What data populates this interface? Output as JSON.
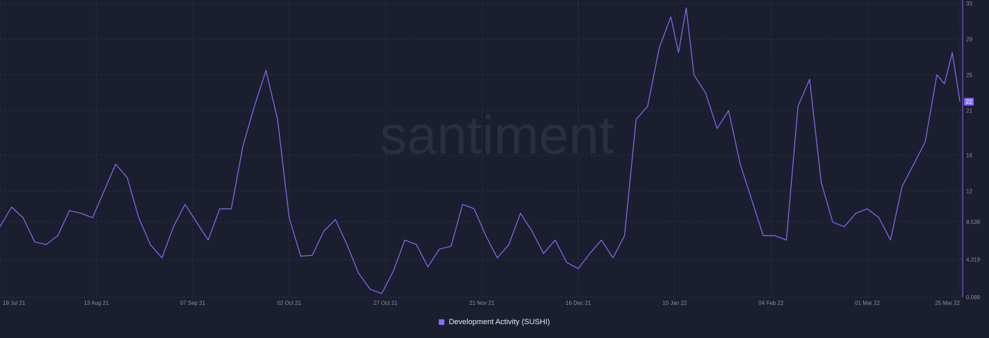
{
  "chart_data": {
    "type": "line",
    "watermark": "santiment",
    "series": [
      {
        "name": "Development Activity (SUSHI)",
        "color": "#8a6df7",
        "last_value_label": "22",
        "x": [
          "2021-07-19",
          "2021-07-22",
          "2021-07-25",
          "2021-07-28",
          "2021-07-31",
          "2021-08-03",
          "2021-08-06",
          "2021-08-09",
          "2021-08-12",
          "2021-08-15",
          "2021-08-18",
          "2021-08-21",
          "2021-08-24",
          "2021-08-27",
          "2021-08-30",
          "2021-09-02",
          "2021-09-05",
          "2021-09-08",
          "2021-09-11",
          "2021-09-14",
          "2021-09-17",
          "2021-09-20",
          "2021-09-23",
          "2021-09-26",
          "2021-09-29",
          "2021-10-02",
          "2021-10-05",
          "2021-10-08",
          "2021-10-11",
          "2021-10-14",
          "2021-10-17",
          "2021-10-20",
          "2021-10-23",
          "2021-10-26",
          "2021-10-29",
          "2021-11-01",
          "2021-11-04",
          "2021-11-07",
          "2021-11-10",
          "2021-11-13",
          "2021-11-16",
          "2021-11-19",
          "2021-11-22",
          "2021-11-25",
          "2021-11-28",
          "2021-12-01",
          "2021-12-04",
          "2021-12-07",
          "2021-12-10",
          "2021-12-13",
          "2021-12-16",
          "2021-12-19",
          "2021-12-22",
          "2021-12-25",
          "2021-12-28",
          "2021-12-31",
          "2022-01-03",
          "2022-01-06",
          "2022-01-09",
          "2022-01-11",
          "2022-01-13",
          "2022-01-15",
          "2022-01-18",
          "2022-01-21",
          "2022-01-24",
          "2022-01-27",
          "2022-01-30",
          "2022-02-02",
          "2022-02-05",
          "2022-02-08",
          "2022-02-11",
          "2022-02-14",
          "2022-02-17",
          "2022-02-20",
          "2022-02-23",
          "2022-02-26",
          "2022-03-01",
          "2022-03-04",
          "2022-03-07",
          "2022-03-10",
          "2022-03-13",
          "2022-03-16",
          "2022-03-19",
          "2022-03-21",
          "2022-03-23",
          "2022-03-25"
        ],
        "values": [
          8.0,
          10.2,
          9.0,
          6.3,
          6.0,
          7.0,
          9.8,
          9.5,
          9.0,
          12.0,
          15.0,
          13.5,
          9.0,
          6.0,
          4.5,
          8.0,
          10.5,
          8.5,
          6.5,
          10.0,
          10.0,
          17.0,
          21.5,
          25.5,
          20.0,
          9.0,
          4.7,
          4.8,
          7.5,
          8.8,
          6.0,
          2.8,
          1.0,
          0.5,
          3.0,
          6.5,
          6.0,
          3.5,
          5.5,
          5.8,
          10.5,
          10.0,
          7.0,
          4.5,
          6.0,
          9.5,
          7.5,
          5.0,
          6.5,
          4.0,
          3.3,
          5.0,
          6.5,
          4.5,
          7.0,
          20.0,
          21.5,
          28.0,
          31.5,
          27.5,
          32.5,
          25.0,
          23.0,
          19.0,
          21.0,
          15.0,
          11.0,
          7.0,
          7.0,
          6.5,
          21.5,
          24.5,
          13.0,
          8.5,
          8.0,
          9.5,
          10.0,
          9.0,
          6.5,
          12.5,
          15.0,
          17.5,
          25.0,
          24.0,
          27.5,
          22.0
        ]
      }
    ],
    "x_ticks": [
      {
        "date": "2021-07-19",
        "label": "19 Jul 21"
      },
      {
        "date": "2021-08-13",
        "label": "13 Aug 21"
      },
      {
        "date": "2021-09-07",
        "label": "07 Sep 21"
      },
      {
        "date": "2021-10-02",
        "label": "02 Oct 21"
      },
      {
        "date": "2021-10-27",
        "label": "27 Oct 21"
      },
      {
        "date": "2021-11-21",
        "label": "21 Nov 21"
      },
      {
        "date": "2021-12-16",
        "label": "16 Dec 21"
      },
      {
        "date": "2022-01-10",
        "label": "10 Jan 22"
      },
      {
        "date": "2022-02-04",
        "label": "04 Feb 22"
      },
      {
        "date": "2022-03-01",
        "label": "01 Mar 22"
      },
      {
        "date": "2022-03-25",
        "label": "25 Mar 22"
      }
    ],
    "y_ticks": [
      {
        "value": 0.099,
        "label": "0.099"
      },
      {
        "value": 4.319,
        "label": "4.319"
      },
      {
        "value": 8.538,
        "label": "8.538"
      },
      {
        "value": 12,
        "label": "12"
      },
      {
        "value": 16,
        "label": "16"
      },
      {
        "value": 21,
        "label": "21"
      },
      {
        "value": 25,
        "label": "25"
      },
      {
        "value": 29,
        "label": "29"
      },
      {
        "value": 33,
        "label": "33"
      }
    ],
    "x_range": [
      "2021-07-19",
      "2022-03-25"
    ],
    "ylim": [
      0.099,
      33
    ],
    "y_axis_side": "right",
    "grid": true,
    "legend_position": "bottom-center"
  },
  "legend": {
    "label": "Development Activity (SUSHI)",
    "color": "#8a6df7"
  }
}
